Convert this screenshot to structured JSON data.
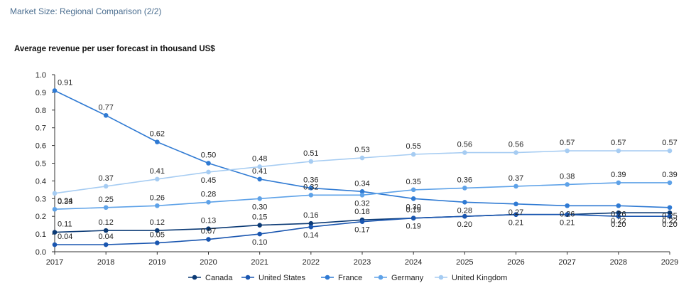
{
  "header": {
    "text": "Market Size: Regional Comparison (2/2)"
  },
  "chart_data": {
    "type": "line",
    "title": "Average revenue per user forecast in thousand US$",
    "xlabel": "",
    "ylabel": "",
    "x": [
      "2017",
      "2018",
      "2019",
      "2020",
      "2021",
      "2022",
      "2023",
      "2024",
      "2025",
      "2026",
      "2027",
      "2028",
      "2029"
    ],
    "ylim": [
      0,
      1.0
    ],
    "yticks": [
      "0.0",
      "0.1",
      "0.2",
      "0.3",
      "0.4",
      "0.5",
      "0.6",
      "0.7",
      "0.8",
      "0.9",
      "1.0"
    ],
    "grid": false,
    "legend_position": "bottom",
    "series": [
      {
        "name": "Canada",
        "color": "#0b3a75",
        "values": [
          0.11,
          0.12,
          0.12,
          0.13,
          0.15,
          0.16,
          0.18,
          0.19,
          0.2,
          0.21,
          0.21,
          0.22,
          0.22
        ],
        "labels": [
          "0.11",
          "0.12",
          "0.12",
          "0.13",
          "0.15",
          "0.16",
          "0.18",
          "0.19",
          "",
          "",
          "",
          "0.22",
          "0.22"
        ]
      },
      {
        "name": "United States",
        "color": "#1a56b0",
        "values": [
          0.04,
          0.04,
          0.05,
          0.07,
          0.1,
          0.14,
          0.17,
          0.19,
          0.2,
          0.21,
          0.21,
          0.2,
          0.2
        ],
        "labels": [
          "0.04",
          "0.04",
          "0.05",
          "0.07",
          "0.10",
          "0.14",
          "0.17",
          "0.19",
          "0.20",
          "0.21",
          "0.21",
          "0.20",
          "0.20"
        ]
      },
      {
        "name": "France",
        "color": "#2f7ad3",
        "values": [
          0.91,
          0.77,
          0.62,
          0.5,
          0.41,
          0.36,
          0.34,
          0.3,
          0.28,
          0.27,
          0.26,
          0.26,
          0.25
        ],
        "labels": [
          "0.91",
          "0.77",
          "0.62",
          "0.50",
          "0.41",
          "0.36",
          "0.34",
          "0.30",
          "0.28",
          "0.27",
          "0.26",
          "0.26",
          "0.25"
        ]
      },
      {
        "name": "Germany",
        "color": "#5ea2e8",
        "values": [
          0.24,
          0.25,
          0.26,
          0.28,
          0.3,
          0.32,
          0.32,
          0.35,
          0.36,
          0.37,
          0.38,
          0.39,
          0.39
        ],
        "labels": [
          "0.24",
          "0.25",
          "0.26",
          "0.28",
          "0.30",
          "0.32",
          "0.32",
          "0.35",
          "0.36",
          "0.37",
          "0.38",
          "0.39",
          "0.39"
        ]
      },
      {
        "name": "United Kingdom",
        "color": "#a6ccf2",
        "values": [
          0.33,
          0.37,
          0.41,
          0.45,
          0.48,
          0.51,
          0.53,
          0.55,
          0.56,
          0.56,
          0.57,
          0.57,
          0.57
        ],
        "labels": [
          "0.33",
          "0.37",
          "0.41",
          "0.45",
          "0.48",
          "0.51",
          "0.53",
          "0.55",
          "0.56",
          "0.56",
          "0.57",
          "0.57",
          "0.57"
        ]
      }
    ]
  }
}
